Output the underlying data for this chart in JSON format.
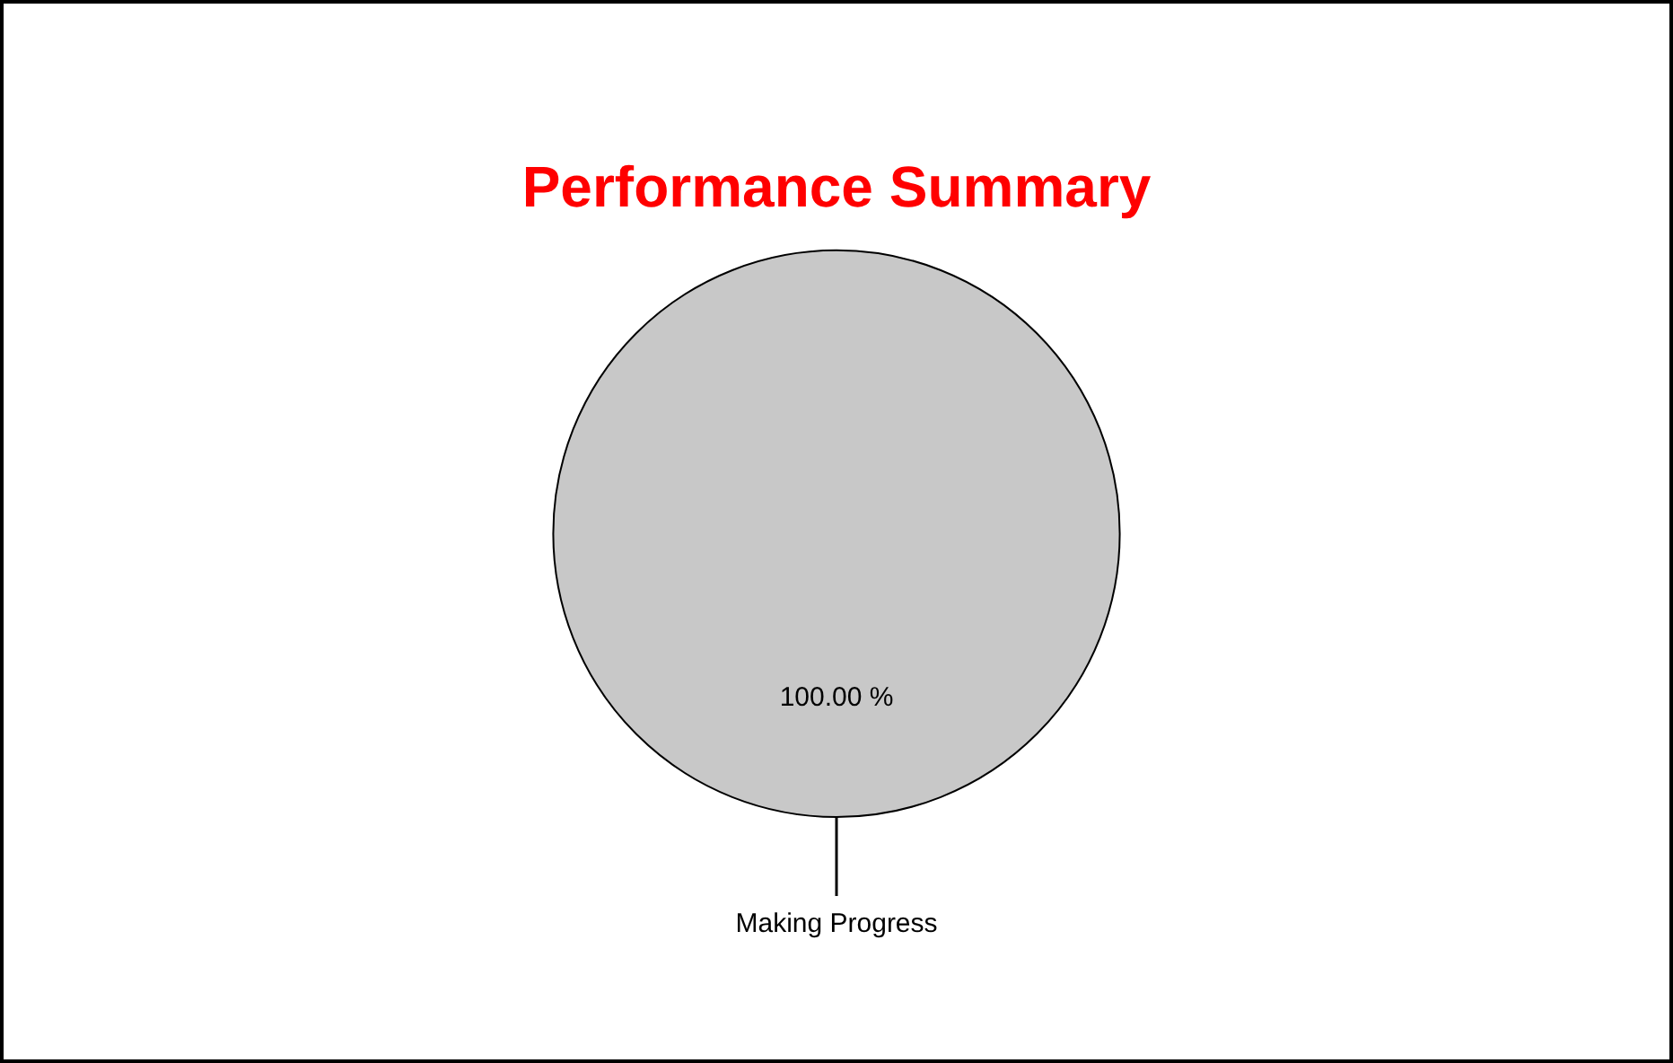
{
  "chart_data": {
    "type": "pie",
    "title": "Performance Summary",
    "categories": [
      "Making Progress"
    ],
    "values": [
      100
    ],
    "colors": [
      "#c8c8c8"
    ],
    "value_labels": [
      "100.00 %"
    ],
    "legend": false
  }
}
